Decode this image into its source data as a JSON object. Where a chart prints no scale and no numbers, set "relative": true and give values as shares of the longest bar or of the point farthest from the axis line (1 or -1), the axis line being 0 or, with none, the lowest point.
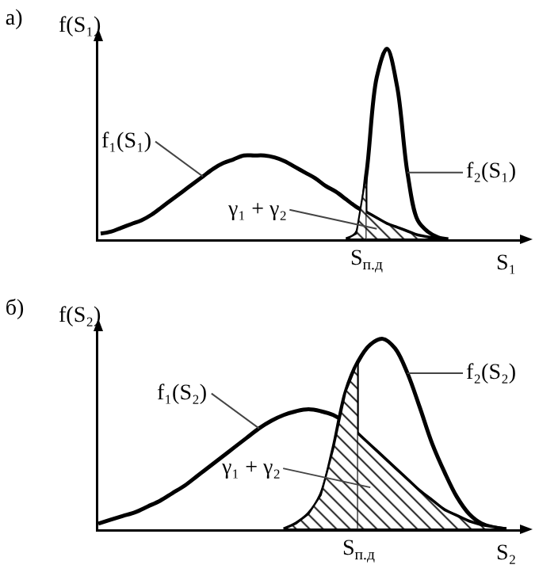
{
  "chart_data": [
    {
      "type": "line",
      "title": "а)",
      "xlabel": "S₁",
      "ylabel": "f(S₁)",
      "relative": true,
      "categories": [
        null,
        null,
        null,
        null,
        null,
        null,
        null,
        null,
        null,
        null,
        null,
        null,
        null,
        null,
        null,
        null,
        null,
        null,
        null,
        null,
        null,
        null,
        null,
        null,
        null,
        null,
        null,
        null,
        null,
        null,
        null,
        null,
        null,
        null,
        null,
        null,
        null,
        null,
        null,
        null,
        null,
        null,
        null,
        null,
        null,
        null,
        null,
        null,
        null,
        null,
        null,
        null,
        null,
        null,
        null,
        null,
        null,
        null,
        null,
        null,
        null,
        null,
        null,
        null,
        null,
        null,
        null
      ],
      "series": [
        {
          "name": "f₁(S₁)",
          "color": "#000000",
          "values": [
            null,
            null,
            null,
            null,
            null,
            0.03,
            0.04,
            0.06,
            0.08,
            0.1,
            0.13,
            0.17,
            0.21,
            0.25,
            0.29,
            0.33,
            0.37,
            0.4,
            0.42,
            0.44,
            0.44,
            0.44,
            0.43,
            0.41,
            0.38,
            0.35,
            0.32,
            0.28,
            0.25,
            0.21,
            0.17,
            0.14,
            0.11,
            0.08,
            0.06,
            0.04,
            0.02,
            0.01,
            0,
            null,
            null,
            null,
            null,
            null,
            null,
            null,
            null,
            null,
            null,
            null,
            null,
            null,
            null,
            null,
            null,
            null,
            null,
            null,
            null,
            null,
            null,
            null,
            null,
            null,
            null,
            null,
            null
          ]
        },
        {
          "name": "f₂(S₁)",
          "color": "#000000",
          "values": [
            null,
            null,
            null,
            null,
            null,
            null,
            null,
            null,
            null,
            null,
            null,
            null,
            null,
            null,
            null,
            null,
            null,
            null,
            null,
            null,
            null,
            null,
            null,
            null,
            null,
            null,
            null,
            null,
            null,
            0,
            0.03,
            0.35,
            0.85,
            1,
            0.8,
            0.35,
            0.1,
            0.04,
            0.01,
            0,
            null,
            null,
            null,
            null,
            null,
            null,
            null,
            null,
            null,
            null,
            null,
            null,
            null,
            null,
            null,
            null,
            null,
            null,
            null,
            null,
            null,
            null,
            null,
            null,
            null,
            null,
            null
          ]
        },
        {
          "type": "area",
          "color": "#000000",
          "values": [
            null,
            null,
            null,
            null,
            null,
            null,
            null,
            null,
            null,
            null,
            null,
            null,
            null,
            null,
            null,
            null,
            null,
            null,
            null,
            null,
            null,
            null,
            null,
            null,
            null,
            null,
            null,
            null,
            null,
            0,
            0.03,
            0.35,
            null,
            null,
            null,
            null,
            null,
            null,
            null,
            null,
            null,
            null,
            null,
            null,
            null,
            null,
            null,
            null,
            null,
            null,
            null,
            null,
            null,
            null,
            null,
            null,
            null,
            null,
            null,
            null,
            null,
            null,
            null,
            null,
            null,
            null,
            null
          ]
        },
        {
          "type": "area",
          "color": "#000000",
          "values": [
            null,
            null,
            null,
            null,
            null,
            null,
            null,
            null,
            null,
            null,
            null,
            null,
            null,
            null,
            null,
            null,
            null,
            null,
            null,
            null,
            null,
            null,
            null,
            null,
            null,
            null,
            null,
            null,
            null,
            null,
            null,
            0.14,
            0.11,
            0.08,
            0.06,
            0.04,
            0.02,
            0.01,
            0,
            null,
            null,
            null,
            null,
            null,
            null,
            null,
            null,
            null,
            null,
            null,
            null,
            null,
            null,
            null,
            null,
            null,
            null,
            null,
            null,
            null,
            null,
            null,
            null,
            null,
            null,
            null,
            null
          ]
        }
      ],
      "annotations": [
        "S$_{п.д}$",
        "γ₁ + γ₂"
      ]
    },
    {
      "type": "line",
      "title": "б)",
      "xlabel": "S₂",
      "ylabel": "f(S₂)",
      "relative": true,
      "categories": [
        null,
        null,
        null,
        null,
        null,
        null,
        null,
        null,
        null,
        null,
        null,
        null,
        null,
        null,
        null,
        null,
        null,
        null,
        null,
        null,
        null,
        null,
        null,
        null,
        null,
        null,
        null,
        null,
        null,
        null,
        null,
        null,
        null,
        null,
        null,
        null,
        null,
        null,
        null,
        null,
        null,
        null,
        null,
        null,
        null,
        null,
        null,
        null,
        null,
        null,
        null,
        null,
        null,
        null,
        null,
        null,
        null,
        null,
        null,
        null,
        null,
        null,
        null,
        null,
        null,
        null,
        null
      ],
      "series": [
        {
          "name": "f₁(S₂)",
          "color": "#000000",
          "values": [
            null,
            null,
            null,
            null,
            0.03,
            0.05,
            0.07,
            0.09,
            0.12,
            0.15,
            0.19,
            0.23,
            0.28,
            0.33,
            0.38,
            0.43,
            0.48,
            0.53,
            0.57,
            0.6,
            0.62,
            0.63,
            0.62,
            0.6,
            0.56,
            0.5,
            0.44,
            0.38,
            0.32,
            0.26,
            0.2,
            0.15,
            0.1,
            0.07,
            0.04,
            0.02,
            0.01,
            0,
            null,
            null,
            null,
            null,
            null,
            null,
            null,
            null,
            null,
            null,
            null,
            null,
            null,
            null,
            null,
            null,
            null,
            null,
            null,
            null,
            null,
            null,
            null,
            null,
            null,
            null,
            null,
            null,
            null
          ]
        },
        {
          "name": "f₂(S₂)",
          "color": "#000000",
          "values": [
            null,
            null,
            null,
            null,
            null,
            null,
            null,
            null,
            null,
            null,
            null,
            null,
            null,
            null,
            null,
            null,
            null,
            null,
            null,
            0,
            0.03,
            0.08,
            0.18,
            0.42,
            0.72,
            0.88,
            0.97,
            1,
            0.95,
            0.82,
            0.64,
            0.45,
            0.3,
            0.17,
            0.08,
            0.03,
            0.01,
            0,
            null,
            null,
            null,
            null,
            null,
            null,
            null,
            null,
            null,
            null,
            null,
            null,
            null,
            null,
            null,
            null,
            null,
            null,
            null,
            null,
            null,
            null,
            null,
            null,
            null,
            null,
            null,
            null,
            null
          ]
        },
        {
          "type": "area",
          "color": "#000000",
          "values": [
            null,
            null,
            null,
            null,
            null,
            null,
            null,
            null,
            null,
            null,
            null,
            null,
            null,
            null,
            null,
            null,
            null,
            null,
            null,
            0,
            0.03,
            0.08,
            0.18,
            0.42,
            0.72,
            0.88,
            null,
            null,
            null,
            null,
            null,
            null,
            null,
            null,
            null,
            null,
            null,
            null,
            null,
            null,
            null,
            null,
            null,
            null,
            null,
            null,
            null,
            null,
            null,
            null,
            null,
            null,
            null,
            null,
            null,
            null,
            null,
            null,
            null,
            null,
            null,
            null,
            null,
            null,
            null,
            null,
            null
          ]
        },
        {
          "type": "area",
          "color": "#000000",
          "values": [
            null,
            null,
            null,
            null,
            null,
            null,
            null,
            null,
            null,
            null,
            null,
            null,
            null,
            null,
            null,
            null,
            null,
            null,
            null,
            null,
            null,
            null,
            null,
            null,
            null,
            0.5,
            0.44,
            0.38,
            0.32,
            0.26,
            0.2,
            0.15,
            0.1,
            0.07,
            0.04,
            0.02,
            0.01,
            0,
            null,
            null,
            null,
            null,
            null,
            null,
            null,
            null,
            null,
            null,
            null,
            null,
            null,
            null,
            null,
            null,
            null,
            null,
            null,
            null,
            null,
            null,
            null,
            null,
            null,
            null,
            null,
            null,
            null
          ]
        }
      ],
      "annotations": [
        "S$_{п.д}$",
        "γ₁ + γ₂"
      ]
    }
  ]
}
